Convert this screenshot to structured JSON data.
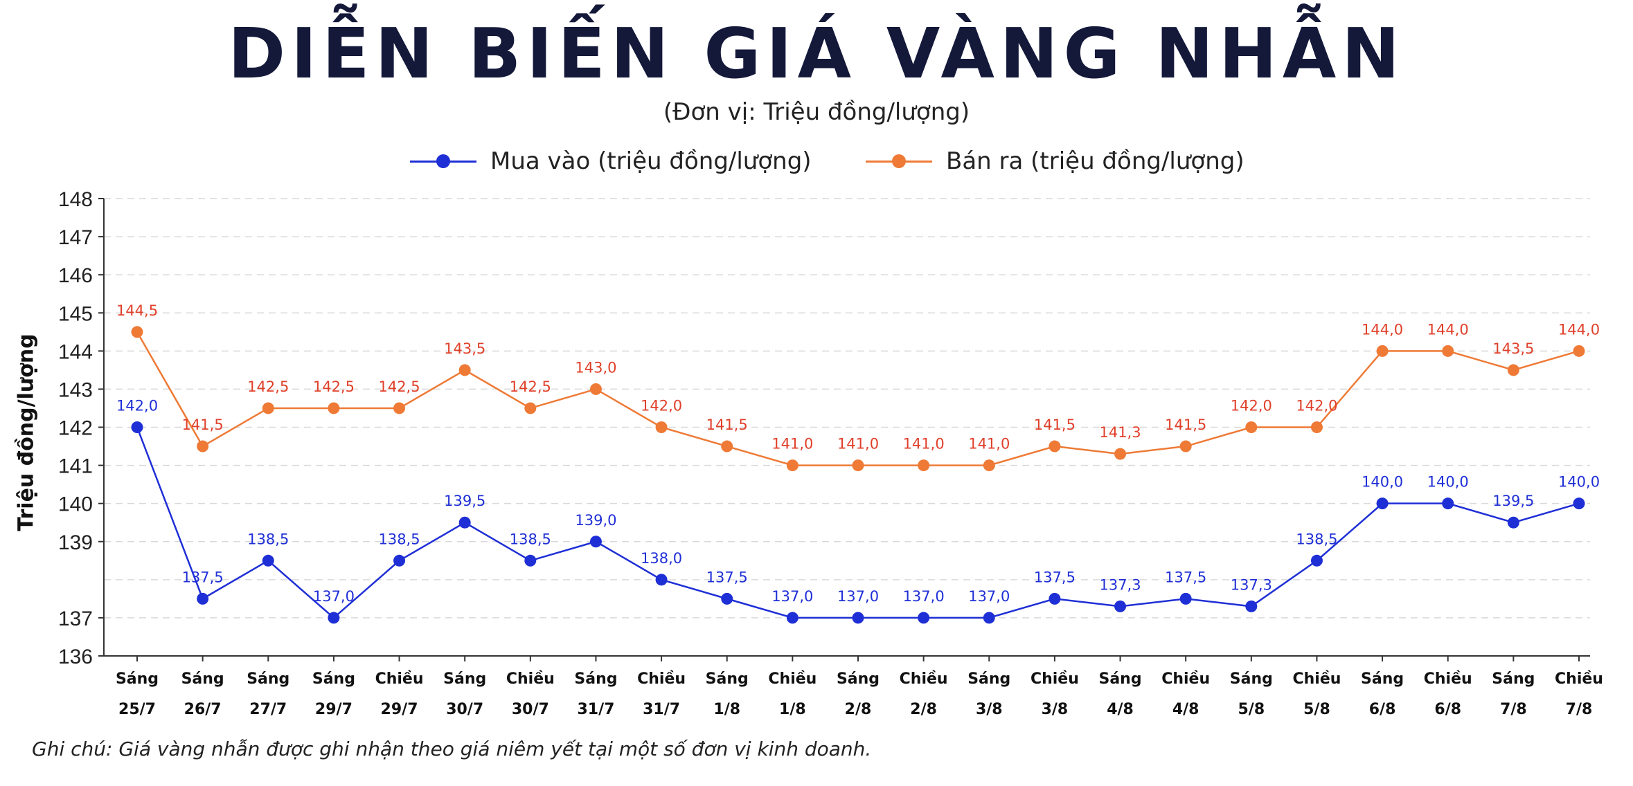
{
  "title": "DIỄN BIẾN GIÁ VÀNG NHẪN",
  "subtitle": "(Đơn vị: Triệu đồng/lượng)",
  "note": "Ghi chú: Giá vàng nhẫn được ghi nhận theo giá niêm yết tại một số đơn vị kinh doanh.",
  "colors": {
    "buy": "#1f2fd6",
    "sell": "#ee7a36",
    "sell_label": "#e0402a",
    "title": "#14193a"
  },
  "chart_data": {
    "type": "line",
    "title": "DIỄN BIẾN GIÁ VÀNG NHẪN",
    "subtitle": "(Đơn vị: Triệu đồng/lượng)",
    "ylabel": "Triệu  đồng/lượng",
    "xlabel": "",
    "ylim": [
      136,
      148
    ],
    "yticks": [
      136,
      137,
      139,
      140,
      141,
      142,
      143,
      144,
      145,
      146,
      147,
      148
    ],
    "grid": true,
    "legend_position": "top-center",
    "categories": [
      [
        "Sáng",
        "25/7"
      ],
      [
        "Sáng",
        "26/7"
      ],
      [
        "Sáng",
        "27/7"
      ],
      [
        "Sáng",
        "29/7"
      ],
      [
        "Chiều",
        "29/7"
      ],
      [
        "Sáng",
        "30/7"
      ],
      [
        "Chiều",
        "30/7"
      ],
      [
        "Sáng",
        "31/7"
      ],
      [
        "Chiều",
        "31/7"
      ],
      [
        "Sáng",
        "1/8"
      ],
      [
        "Chiều",
        "1/8"
      ],
      [
        "Sáng",
        "2/8"
      ],
      [
        "Chiều",
        "2/8"
      ],
      [
        "Sáng",
        "3/8"
      ],
      [
        "Chiều",
        "3/8"
      ],
      [
        "Sáng",
        "4/8"
      ],
      [
        "Chiều",
        "4/8"
      ],
      [
        "Sáng",
        "5/8"
      ],
      [
        "Chiều",
        "5/8"
      ],
      [
        "Sáng",
        "6/8"
      ],
      [
        "Chiều",
        "6/8"
      ],
      [
        "Sáng",
        "7/8"
      ],
      [
        "Chiều",
        "7/8"
      ]
    ],
    "series": [
      {
        "name": "Mua vào (triệu đồng/lượng)",
        "color": "#1f2fd6",
        "values": [
          142.0,
          137.5,
          138.5,
          137.0,
          138.5,
          139.5,
          138.5,
          139.0,
          138.0,
          137.5,
          137.0,
          137.0,
          137.0,
          137.0,
          137.5,
          137.3,
          137.5,
          137.3,
          138.5,
          140.0,
          140.0,
          139.5,
          140.0
        ],
        "labels": [
          "142,0",
          "137,5",
          "138,5",
          "137,0",
          "138,5",
          "139,5",
          "138,5",
          "139,0",
          "138,0",
          "137,5",
          "137,0",
          "137,0",
          "137,0",
          "137,0",
          "137,5",
          "137,3",
          "137,5",
          "137,3",
          "138,5",
          "140,0",
          "140,0",
          "139,5",
          "140,0"
        ]
      },
      {
        "name": "Bán ra (triệu đồng/lượng)",
        "color": "#ee7a36",
        "values": [
          144.5,
          141.5,
          142.5,
          142.5,
          142.5,
          143.5,
          142.5,
          143.0,
          142.0,
          141.5,
          141.0,
          141.0,
          141.0,
          141.0,
          141.5,
          141.3,
          141.5,
          142.0,
          142.0,
          144.0,
          144.0,
          143.5,
          144.0
        ],
        "labels": [
          "144,5",
          "141,5",
          "142,5",
          "142,5",
          "142,5",
          "143,5",
          "142,5",
          "143,0",
          "142,0",
          "141,5",
          "141,0",
          "141,0",
          "141,0",
          "141,0",
          "141,5",
          "141,3",
          "141,5",
          "142,0",
          "142,0",
          "144,0",
          "144,0",
          "143,5",
          "144,0"
        ]
      }
    ]
  }
}
